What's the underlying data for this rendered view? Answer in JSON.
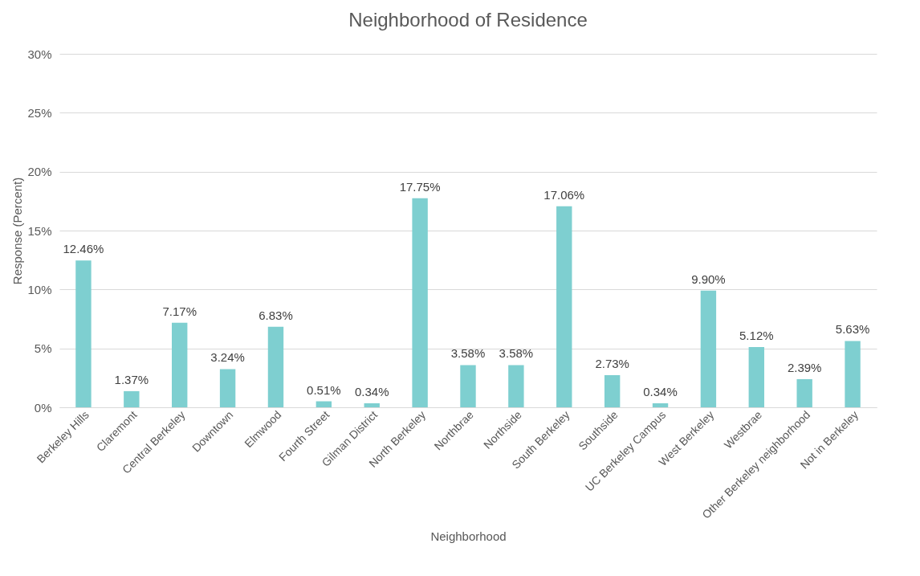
{
  "chart_data": {
    "type": "bar",
    "title": "Neighborhood of Residence",
    "xlabel": "Neighborhood",
    "ylabel": "Response (Percent)",
    "categories": [
      "Berkeley Hills",
      "Claremont",
      "Central Berkeley",
      "Downtown",
      "Elmwood",
      "Fourth Street",
      "Gilman District",
      "North Berkeley",
      "Northbrae",
      "Northside",
      "South Berkeley",
      "Southside",
      "UC Berkeley Campus",
      "West Berkeley",
      "Westbrae",
      "Other Berkeley neighborhood",
      "Not in Berkeley"
    ],
    "values": [
      12.46,
      1.37,
      7.17,
      3.24,
      6.83,
      0.51,
      0.34,
      17.75,
      3.58,
      3.58,
      17.06,
      2.73,
      0.34,
      9.9,
      5.12,
      2.39,
      5.63
    ],
    "value_labels": [
      "12.46%",
      "1.37%",
      "7.17%",
      "3.24%",
      "6.83%",
      "0.51%",
      "0.34%",
      "17.75%",
      "3.58%",
      "3.58%",
      "17.06%",
      "2.73%",
      "0.34%",
      "9.90%",
      "5.12%",
      "2.39%",
      "5.63%"
    ],
    "color": "#7ecfd0",
    "ylim": [
      0,
      30
    ],
    "yticks": [
      {
        "value": 0,
        "label": "0%"
      },
      {
        "value": 5,
        "label": "5%"
      },
      {
        "value": 10,
        "label": "10%"
      },
      {
        "value": 15,
        "label": "15%"
      },
      {
        "value": 20,
        "label": "20%"
      },
      {
        "value": 25,
        "label": "25%"
      },
      {
        "value": 30,
        "label": "30%"
      }
    ],
    "grid": "y"
  }
}
